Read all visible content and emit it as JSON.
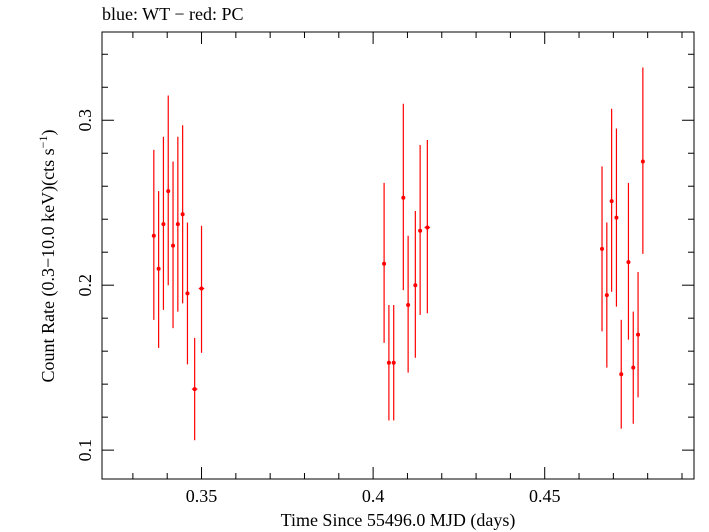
{
  "chart_data": {
    "type": "scatter",
    "title": "blue: WT − red: PC",
    "xlabel": "Time Since 55496.0 MJD (days)",
    "ylabel_main": "Count Rate (0.3−10.0 keV)(cts s",
    "ylabel_sup": "−1",
    "ylabel_close": ")",
    "xlim": [
      0.321,
      0.4935
    ],
    "ylim": [
      0.0825,
      0.3535
    ],
    "x_ticks": [
      0.35,
      0.4,
      0.45
    ],
    "x_tick_labels": [
      "0.35",
      "0.4",
      "0.45"
    ],
    "y_ticks": [
      0.1,
      0.2,
      0.3
    ],
    "y_tick_labels": [
      "0.1",
      "0.2",
      "0.3"
    ],
    "grid": false,
    "series": [
      {
        "color": "#ff0000",
        "points": [
          {
            "x": 0.3361,
            "y": 0.23,
            "ylo": 0.179,
            "yhi": 0.282,
            "xerr": 0.0005
          },
          {
            "x": 0.3375,
            "y": 0.21,
            "ylo": 0.162,
            "yhi": 0.257,
            "xerr": 0.0005
          },
          {
            "x": 0.3389,
            "y": 0.237,
            "ylo": 0.185,
            "yhi": 0.29,
            "xerr": 0.0005
          },
          {
            "x": 0.3403,
            "y": 0.257,
            "ylo": 0.2,
            "yhi": 0.315,
            "xerr": 0.0005
          },
          {
            "x": 0.3417,
            "y": 0.224,
            "ylo": 0.174,
            "yhi": 0.275,
            "xerr": 0.0005
          },
          {
            "x": 0.3431,
            "y": 0.237,
            "ylo": 0.184,
            "yhi": 0.29,
            "xerr": 0.0005
          },
          {
            "x": 0.3445,
            "y": 0.243,
            "ylo": 0.189,
            "yhi": 0.297,
            "xerr": 0.0005
          },
          {
            "x": 0.3459,
            "y": 0.195,
            "ylo": 0.152,
            "yhi": 0.238,
            "xerr": 0.0005
          },
          {
            "x": 0.348,
            "y": 0.137,
            "ylo": 0.106,
            "yhi": 0.168,
            "xerr": 0.0008
          },
          {
            "x": 0.35,
            "y": 0.198,
            "ylo": 0.159,
            "yhi": 0.236,
            "xerr": 0.0008
          },
          {
            "x": 0.4032,
            "y": 0.213,
            "ylo": 0.165,
            "yhi": 0.262,
            "xerr": 0.0005
          },
          {
            "x": 0.4046,
            "y": 0.153,
            "ylo": 0.118,
            "yhi": 0.188,
            "xerr": 0.0005
          },
          {
            "x": 0.406,
            "y": 0.153,
            "ylo": 0.118,
            "yhi": 0.188,
            "xerr": 0.0005
          },
          {
            "x": 0.4088,
            "y": 0.253,
            "ylo": 0.197,
            "yhi": 0.31,
            "xerr": 0.0005
          },
          {
            "x": 0.4102,
            "y": 0.188,
            "ylo": 0.147,
            "yhi": 0.23,
            "xerr": 0.0005
          },
          {
            "x": 0.4123,
            "y": 0.2,
            "ylo": 0.156,
            "yhi": 0.245,
            "xerr": 0.0005
          },
          {
            "x": 0.4137,
            "y": 0.233,
            "ylo": 0.182,
            "yhi": 0.285,
            "xerr": 0.0005
          },
          {
            "x": 0.4158,
            "y": 0.235,
            "ylo": 0.183,
            "yhi": 0.288,
            "xerr": 0.0008
          },
          {
            "x": 0.4667,
            "y": 0.222,
            "ylo": 0.172,
            "yhi": 0.272,
            "xerr": 0.0005
          },
          {
            "x": 0.4681,
            "y": 0.194,
            "ylo": 0.15,
            "yhi": 0.238,
            "xerr": 0.0005
          },
          {
            "x": 0.4695,
            "y": 0.251,
            "ylo": 0.196,
            "yhi": 0.307,
            "xerr": 0.0005
          },
          {
            "x": 0.4709,
            "y": 0.241,
            "ylo": 0.187,
            "yhi": 0.295,
            "xerr": 0.0005
          },
          {
            "x": 0.4723,
            "y": 0.146,
            "ylo": 0.113,
            "yhi": 0.179,
            "xerr": 0.0005
          },
          {
            "x": 0.4744,
            "y": 0.214,
            "ylo": 0.167,
            "yhi": 0.262,
            "xerr": 0.0005
          },
          {
            "x": 0.4758,
            "y": 0.15,
            "ylo": 0.116,
            "yhi": 0.184,
            "xerr": 0.0005
          },
          {
            "x": 0.4772,
            "y": 0.17,
            "ylo": 0.132,
            "yhi": 0.208,
            "xerr": 0.0005
          },
          {
            "x": 0.4786,
            "y": 0.275,
            "ylo": 0.219,
            "yhi": 0.332,
            "xerr": 0.0005
          }
        ]
      }
    ]
  }
}
